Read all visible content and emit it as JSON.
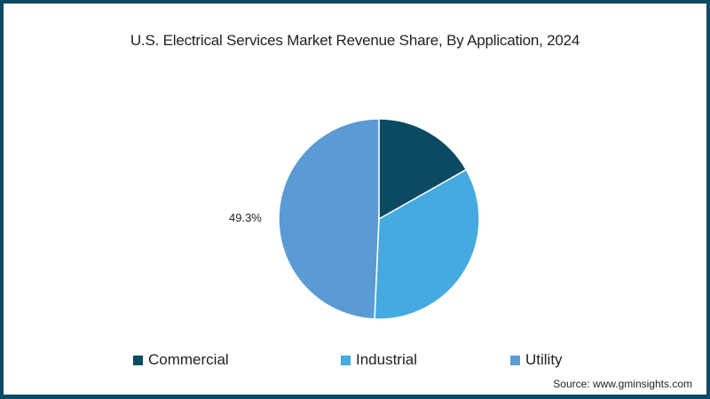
{
  "chart_data": {
    "type": "pie",
    "title": "U.S. Electrical Services Market Revenue Share, By Application, 2024",
    "categories": [
      "Commercial",
      "Industrial",
      "Utility"
    ],
    "values": [
      16.8,
      33.9,
      49.3
    ],
    "colors": [
      "#0b4a63",
      "#44aadf",
      "#5b9bd5"
    ],
    "data_labels": {
      "Utility": "49.3%"
    },
    "legend_position": "bottom",
    "source": "Source: www.gminsights.com"
  },
  "title": "U.S. Electrical Services Market Revenue Share, By Application, 2024",
  "labels": {
    "utility": "49.3%"
  },
  "legend": {
    "commercial": "Commercial",
    "industrial": "Industrial",
    "utility": "Utility"
  },
  "source": "Source: www.gminsights.com"
}
